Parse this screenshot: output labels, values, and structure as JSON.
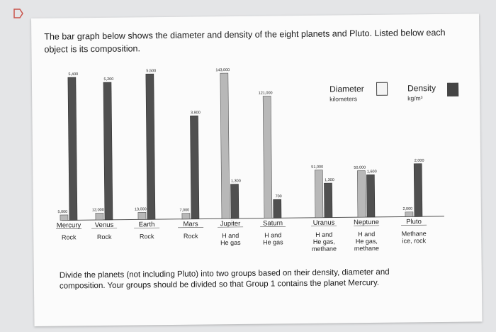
{
  "question": {
    "intro": "The bar graph below shows the diameter and density of the eight planets and Pluto. Listed below each object is its composition.",
    "instructions": "Divide the planets (not including Pluto) into two groups based on their density, diameter and composition. Your groups should be divided so that Group 1 contains the planet Mercury."
  },
  "legend": {
    "diameter_label": "Diameter",
    "diameter_unit": "kilometers",
    "density_label": "Density",
    "density_unit": "kg/m³"
  },
  "colors": {
    "diameter": "#b8b8b8",
    "density": "#505050",
    "page": "#e4e5e7",
    "card": "#fbfbfb"
  },
  "chart_data": {
    "type": "bar",
    "categories": [
      "Mercury",
      "Venus",
      "Earth",
      "Mars",
      "Jupiter",
      "Saturn",
      "Uranus",
      "Neptune",
      "Pluto"
    ],
    "compositions": [
      [
        "Rock"
      ],
      [
        "Rock"
      ],
      [
        "Rock"
      ],
      [
        "Rock"
      ],
      [
        "H and",
        "He gas"
      ],
      [
        "H and",
        "He gas"
      ],
      [
        "H and",
        "He gas,",
        "methane"
      ],
      [
        "H and",
        "He gas,",
        "methane"
      ],
      [
        "Methane",
        "ice, rock"
      ]
    ],
    "series": [
      {
        "name": "Diameter",
        "values": [
          5000,
          12000,
          13000,
          7000,
          143000,
          121000,
          51000,
          50000,
          2000
        ],
        "labels": [
          "5,000",
          "12,000",
          "13,000",
          "7,000",
          "143,000",
          "121,000",
          "51,000",
          "50,000",
          "2,000"
        ]
      },
      {
        "name": "Density",
        "values": [
          5400,
          5200,
          5500,
          3900,
          1300,
          700,
          1300,
          1600,
          2000
        ],
        "labels": [
          "5,400",
          "5,200",
          "5,500",
          "3,900",
          "1,300",
          "700",
          "1,300",
          "1,600",
          "2,000"
        ]
      }
    ]
  }
}
